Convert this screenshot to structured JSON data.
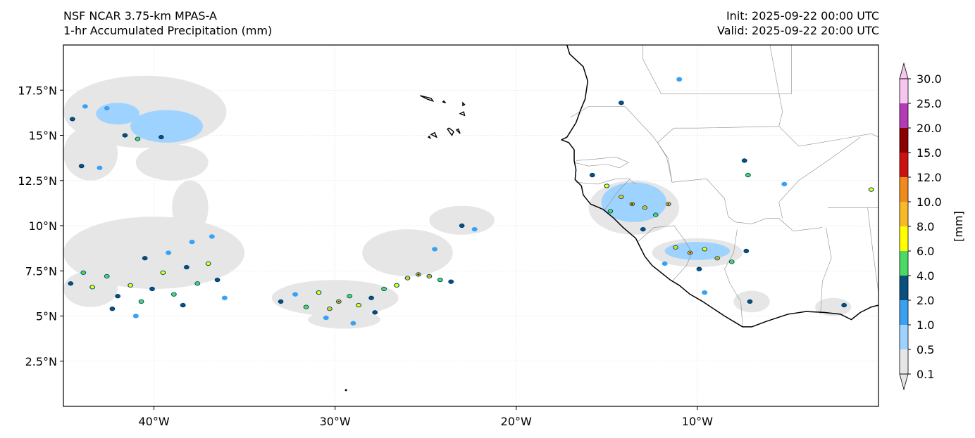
{
  "title_left": {
    "line1": "NSF NCAR 3.75-km MPAS-A",
    "line2": "1-hr Accumulated Precipitation (mm)"
  },
  "title_right": {
    "line1": "Init: 2025-09-22 00:00 UTC",
    "line2": "Valid: 2025-09-22 20:00 UTC"
  },
  "map_extent": {
    "lon_min": -45,
    "lon_max": 0,
    "lat_min": 0,
    "lat_max": 20
  },
  "lat_ticks": [
    {
      "value": 2.5,
      "label": "2.5°N"
    },
    {
      "value": 5,
      "label": "5°N"
    },
    {
      "value": 7.5,
      "label": "7.5°N"
    },
    {
      "value": 10,
      "label": "10°N"
    },
    {
      "value": 12.5,
      "label": "12.5°N"
    },
    {
      "value": 15,
      "label": "15°N"
    },
    {
      "value": 17.5,
      "label": "17.5°N"
    }
  ],
  "lon_ticks": [
    {
      "value": -40,
      "label": "40°W"
    },
    {
      "value": -30,
      "label": "30°W"
    },
    {
      "value": -20,
      "label": "20°W"
    },
    {
      "value": -10,
      "label": "10°W"
    }
  ],
  "colorbar": {
    "unit_label": "[mm]",
    "levels": [
      "0.1",
      "0.5",
      "1.0",
      "2.0",
      "4.0",
      "6.0",
      "8.0",
      "10.0",
      "12.0",
      "15.0",
      "20.0",
      "25.0",
      "30.0"
    ],
    "colors": [
      "#e6e6e6",
      "#9fd3ff",
      "#3aa0f0",
      "#09507e",
      "#4cd964",
      "#ffff00",
      "#f7b928",
      "#ef8a1c",
      "#cc1111",
      "#8b0000",
      "#b53ab5",
      "#f7c6f0"
    ]
  },
  "colors": {
    "coastline": "#000000",
    "border": "#8c8c8c",
    "grid": "#dcdcdc"
  },
  "precip_areas": [
    {
      "lon": -40.5,
      "lat": 16.3,
      "rlon": 4.5,
      "rlat": 2.0,
      "c": 0
    },
    {
      "lon": -43.5,
      "lat": 14.0,
      "rlon": 1.5,
      "rlat": 1.5,
      "c": 0
    },
    {
      "lon": -39.0,
      "lat": 13.5,
      "rlon": 2.0,
      "rlat": 1.0,
      "c": 0
    },
    {
      "lon": -39.3,
      "lat": 15.5,
      "rlon": 2.0,
      "rlat": 0.9,
      "c": 1
    },
    {
      "lon": -42.0,
      "lat": 16.2,
      "rlon": 1.2,
      "rlat": 0.6,
      "c": 1
    },
    {
      "lon": -40.0,
      "lat": 8.5,
      "rlon": 5.0,
      "rlat": 2.0,
      "c": 0
    },
    {
      "lon": -38.0,
      "lat": 11.0,
      "rlon": 1.0,
      "rlat": 1.5,
      "c": 0
    },
    {
      "lon": -43.5,
      "lat": 6.5,
      "rlon": 1.5,
      "rlat": 1.0,
      "c": 0
    },
    {
      "lon": -30.0,
      "lat": 6.0,
      "rlon": 3.5,
      "rlat": 1.0,
      "c": 0
    },
    {
      "lon": -26.0,
      "lat": 8.5,
      "rlon": 2.5,
      "rlat": 1.3,
      "c": 0
    },
    {
      "lon": -23.0,
      "lat": 10.3,
      "rlon": 1.8,
      "rlat": 0.8,
      "c": 0
    },
    {
      "lon": -29.5,
      "lat": 4.8,
      "rlon": 2.0,
      "rlat": 0.5,
      "c": 0
    },
    {
      "lon": -13.5,
      "lat": 11.0,
      "rlon": 2.5,
      "rlat": 1.5,
      "c": 0
    },
    {
      "lon": -10.0,
      "lat": 8.5,
      "rlon": 2.5,
      "rlat": 0.8,
      "c": 0
    },
    {
      "lon": -13.5,
      "lat": 11.3,
      "rlon": 1.8,
      "rlat": 1.1,
      "c": 1
    },
    {
      "lon": -10.0,
      "lat": 8.6,
      "rlon": 1.8,
      "rlat": 0.5,
      "c": 1
    },
    {
      "lon": -2.5,
      "lat": 5.5,
      "rlon": 1.0,
      "rlat": 0.5,
      "c": 0
    },
    {
      "lon": -7.0,
      "lat": 5.8,
      "rlon": 1.0,
      "rlat": 0.6,
      "c": 0
    }
  ],
  "precip_cells": [
    [
      -44.5,
      15.9,
      3
    ],
    [
      -43.8,
      16.6,
      2
    ],
    [
      -42.6,
      16.5,
      2
    ],
    [
      -41.6,
      15.0,
      3
    ],
    [
      -40.9,
      14.8,
      4
    ],
    [
      -39.6,
      14.9,
      3
    ],
    [
      -44.0,
      13.3,
      3
    ],
    [
      -43.0,
      13.2,
      2
    ],
    [
      -44.6,
      6.8,
      3
    ],
    [
      -43.9,
      7.4,
      4
    ],
    [
      -43.4,
      6.6,
      5
    ],
    [
      -42.6,
      7.2,
      4
    ],
    [
      -42.0,
      6.1,
      3
    ],
    [
      -41.3,
      6.7,
      5
    ],
    [
      -40.7,
      5.8,
      4
    ],
    [
      -40.1,
      6.5,
      3
    ],
    [
      -39.5,
      7.4,
      5
    ],
    [
      -38.9,
      6.2,
      4
    ],
    [
      -38.2,
      7.7,
      3
    ],
    [
      -37.6,
      6.8,
      4
    ],
    [
      -37.0,
      7.9,
      5
    ],
    [
      -36.5,
      7.0,
      3
    ],
    [
      -40.5,
      8.2,
      3
    ],
    [
      -39.2,
      8.5,
      2
    ],
    [
      -37.9,
      9.1,
      2
    ],
    [
      -36.8,
      9.4,
      2
    ],
    [
      -42.3,
      5.4,
      3
    ],
    [
      -41.0,
      5.0,
      2
    ],
    [
      -38.4,
      5.6,
      3
    ],
    [
      -36.1,
      6.0,
      2
    ],
    [
      -33.0,
      5.8,
      3
    ],
    [
      -32.2,
      6.2,
      2
    ],
    [
      -31.6,
      5.5,
      4
    ],
    [
      -30.9,
      6.3,
      5
    ],
    [
      -30.3,
      5.4,
      6
    ],
    [
      -29.8,
      5.8,
      8
    ],
    [
      -29.2,
      6.1,
      4
    ],
    [
      -28.7,
      5.6,
      5
    ],
    [
      -28.0,
      6.0,
      3
    ],
    [
      -27.3,
      6.5,
      4
    ],
    [
      -26.6,
      6.7,
      5
    ],
    [
      -26.0,
      7.1,
      6
    ],
    [
      -25.4,
      7.3,
      9
    ],
    [
      -24.8,
      7.2,
      7
    ],
    [
      -24.2,
      7.0,
      4
    ],
    [
      -23.6,
      6.9,
      3
    ],
    [
      -30.5,
      4.9,
      2
    ],
    [
      -29.0,
      4.6,
      2
    ],
    [
      -27.8,
      5.2,
      3
    ],
    [
      -23.0,
      10.0,
      3
    ],
    [
      -22.3,
      9.8,
      2
    ],
    [
      -24.5,
      8.7,
      2
    ],
    [
      -15.8,
      12.8,
      3
    ],
    [
      -15.0,
      12.2,
      5
    ],
    [
      -14.2,
      11.6,
      6
    ],
    [
      -13.6,
      11.2,
      9
    ],
    [
      -12.9,
      11.0,
      7
    ],
    [
      -12.3,
      10.6,
      4
    ],
    [
      -11.6,
      11.2,
      8
    ],
    [
      -14.8,
      10.8,
      4
    ],
    [
      -13.0,
      9.8,
      3
    ],
    [
      -11.2,
      8.8,
      6
    ],
    [
      -10.4,
      8.5,
      8
    ],
    [
      -9.6,
      8.7,
      5
    ],
    [
      -8.9,
      8.2,
      7
    ],
    [
      -8.1,
      8.0,
      4
    ],
    [
      -7.3,
      8.6,
      3
    ],
    [
      -9.9,
      7.6,
      3
    ],
    [
      -11.8,
      7.9,
      2
    ],
    [
      -7.2,
      12.8,
      4
    ],
    [
      -7.4,
      13.6,
      3
    ],
    [
      -5.2,
      12.3,
      2
    ],
    [
      -14.2,
      16.8,
      3
    ],
    [
      -11.0,
      18.1,
      2
    ],
    [
      -0.4,
      12.0,
      5
    ],
    [
      -1.9,
      5.6,
      3
    ],
    [
      -7.1,
      5.8,
      3
    ],
    [
      -9.6,
      6.3,
      2
    ]
  ],
  "islands": [
    [
      [
        -25.3,
        17.2
      ],
      [
        -24.9,
        17.0
      ],
      [
        -24.6,
        16.9
      ],
      [
        -24.7,
        17.05
      ],
      [
        -25.1,
        17.15
      ]
    ],
    [
      [
        -24.05,
        16.85
      ],
      [
        -23.9,
        16.8
      ],
      [
        -24.0,
        16.9
      ]
    ],
    [
      [
        -22.95,
        16.8
      ],
      [
        -22.85,
        16.7
      ],
      [
        -22.95,
        16.65
      ]
    ],
    [
      [
        -23.1,
        16.2
      ],
      [
        -22.85,
        16.1
      ],
      [
        -22.9,
        16.3
      ]
    ],
    [
      [
        -24.7,
        15.05
      ],
      [
        -24.4,
        14.9
      ],
      [
        -24.5,
        15.15
      ]
    ],
    [
      [
        -23.8,
        15.35
      ],
      [
        -23.55,
        15.0
      ],
      [
        -23.45,
        15.2
      ],
      [
        -23.7,
        15.4
      ]
    ],
    [
      [
        -23.3,
        15.3
      ],
      [
        -23.1,
        15.1
      ],
      [
        -23.2,
        15.35
      ]
    ],
    [
      [
        -24.85,
        14.9
      ],
      [
        -24.75,
        14.85
      ],
      [
        -24.8,
        14.95
      ]
    ]
  ],
  "coastline": [
    [
      -17.2,
      20.0
    ],
    [
      -17.05,
      19.5
    ],
    [
      -16.3,
      18.8
    ],
    [
      -16.05,
      18.0
    ],
    [
      -16.2,
      17.0
    ],
    [
      -16.45,
      16.4
    ],
    [
      -16.7,
      15.7
    ],
    [
      -17.2,
      14.9
    ],
    [
      -17.5,
      14.75
    ],
    [
      -17.1,
      14.6
    ],
    [
      -16.8,
      14.2
    ],
    [
      -16.8,
      13.6
    ],
    [
      -16.7,
      13.1
    ],
    [
      -16.75,
      12.55
    ],
    [
      -16.4,
      12.2
    ],
    [
      -16.3,
      11.7
    ],
    [
      -15.9,
      11.2
    ],
    [
      -15.2,
      10.9
    ],
    [
      -14.6,
      10.4
    ],
    [
      -14.1,
      9.9
    ],
    [
      -13.4,
      9.3
    ],
    [
      -13.2,
      8.9
    ],
    [
      -12.9,
      8.3
    ],
    [
      -12.5,
      7.8
    ],
    [
      -11.5,
      7.0
    ],
    [
      -11.0,
      6.7
    ],
    [
      -10.4,
      6.2
    ],
    [
      -9.7,
      5.8
    ],
    [
      -8.5,
      5.0
    ],
    [
      -7.5,
      4.4
    ],
    [
      -7.0,
      4.4
    ],
    [
      -6.2,
      4.7
    ],
    [
      -5.0,
      5.1
    ],
    [
      -4.0,
      5.25
    ],
    [
      -3.0,
      5.2
    ],
    [
      -2.1,
      5.1
    ],
    [
      -1.5,
      4.8
    ],
    [
      -1.0,
      5.2
    ],
    [
      -0.4,
      5.5
    ],
    [
      0.0,
      5.6
    ]
  ],
  "borders": [
    [
      [
        -16.8,
        13.5
      ],
      [
        -16.0,
        13.3
      ],
      [
        -15.0,
        13.4
      ],
      [
        -14.3,
        13.2
      ],
      [
        -13.8,
        13.5
      ],
      [
        -14.5,
        13.8
      ],
      [
        -15.5,
        13.7
      ],
      [
        -16.7,
        13.6
      ]
    ],
    [
      [
        -16.7,
        12.4
      ],
      [
        -15.5,
        12.3
      ],
      [
        -14.5,
        12.6
      ],
      [
        -13.8,
        12.6
      ],
      [
        -13.4,
        12.3
      ]
    ],
    [
      [
        -15.1,
        10.9
      ],
      [
        -14.3,
        12.0
      ],
      [
        -13.7,
        12.6
      ]
    ],
    [
      [
        -13.3,
        9.1
      ],
      [
        -12.4,
        9.9
      ],
      [
        -11.3,
        10.0
      ],
      [
        -10.7,
        9.2
      ],
      [
        -10.3,
        8.5
      ],
      [
        -10.6,
        7.8
      ],
      [
        -11.4,
        6.9
      ]
    ],
    [
      [
        -12.2,
        14.6
      ],
      [
        -11.6,
        13.7
      ],
      [
        -11.4,
        12.4
      ]
    ],
    [
      [
        -11.4,
        12.4
      ],
      [
        -9.5,
        12.6
      ],
      [
        -8.5,
        11.5
      ],
      [
        -8.3,
        10.5
      ],
      [
        -7.9,
        10.2
      ],
      [
        -7.0,
        10.1
      ],
      [
        -6.2,
        10.4
      ],
      [
        -5.5,
        10.4
      ],
      [
        -4.7,
        9.7
      ],
      [
        -3.1,
        9.9
      ]
    ],
    [
      [
        -8.5,
        7.6
      ],
      [
        -8.2,
        6.8
      ],
      [
        -7.6,
        5.8
      ],
      [
        -7.5,
        4.4
      ]
    ],
    [
      [
        -8.5,
        7.6
      ],
      [
        -8.0,
        8.5
      ],
      [
        -7.8,
        9.8
      ]
    ],
    [
      [
        -2.9,
        9.9
      ],
      [
        -2.6,
        8.2
      ],
      [
        -3.1,
        6.9
      ],
      [
        -3.2,
        5.1
      ]
    ],
    [
      [
        -11.4,
        12.4
      ],
      [
        -11.7,
        13.8
      ],
      [
        -12.2,
        14.6
      ],
      [
        -11.3,
        15.4
      ],
      [
        -10.0,
        15.4
      ],
      [
        -5.5,
        15.5
      ],
      [
        -5.3,
        16.3
      ],
      [
        -6.0,
        20.0
      ]
    ],
    [
      [
        -17.0,
        16.0
      ],
      [
        -16.0,
        16.6
      ],
      [
        -14.0,
        16.6
      ],
      [
        -12.5,
        15.0
      ],
      [
        -12.2,
        14.6
      ]
    ],
    [
      [
        -13.0,
        20.0
      ],
      [
        -13.0,
        19.2
      ],
      [
        -12.0,
        17.3
      ],
      [
        -4.8,
        17.3
      ],
      [
        -4.8,
        20.0
      ]
    ],
    [
      [
        -5.5,
        15.5
      ],
      [
        -4.4,
        14.4
      ],
      [
        -2.0,
        14.8
      ],
      [
        -0.4,
        15.1
      ],
      [
        0.0,
        14.9
      ]
    ],
    [
      [
        -5.3,
        10.4
      ],
      [
        -5.5,
        11.3
      ],
      [
        -4.4,
        12.5
      ],
      [
        -2.8,
        13.6
      ],
      [
        -1.0,
        14.9
      ]
    ],
    [
      [
        -2.8,
        11.0
      ],
      [
        -1.0,
        11.0
      ],
      [
        0.0,
        11.0
      ]
    ],
    [
      [
        -0.6,
        11.0
      ],
      [
        -0.3,
        8.5
      ],
      [
        0.0,
        6.3
      ]
    ]
  ],
  "mainland_hint": [
    [
      -17.2,
      20.0
    ],
    [
      0.0,
      20.0
    ],
    [
      0.0,
      5.6
    ]
  ]
}
